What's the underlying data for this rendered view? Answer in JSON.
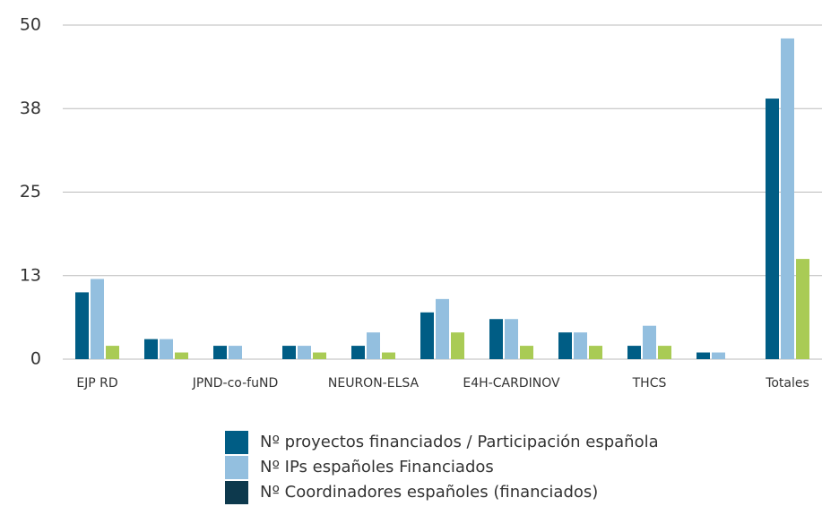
{
  "chart_data": {
    "type": "bar",
    "categories": [
      "EJP RD",
      null,
      "JPND-co-fuND",
      null,
      "NEURON-ELSA",
      null,
      "E4H-CARDINOV",
      null,
      "THCS",
      null,
      "Totales"
    ],
    "series": [
      {
        "name": "Nº proyectos financiados / Participación española",
        "color": "#005d85",
        "legend_color": "#005d85",
        "values": [
          10,
          3,
          2,
          2,
          2,
          7,
          6,
          4,
          2,
          1,
          39
        ]
      },
      {
        "name": "Nº IPs españoles Financiados",
        "color": "#93bfdf",
        "legend_color": "#93bfdf",
        "values": [
          12,
          3,
          2,
          2,
          4,
          9,
          6,
          4,
          5,
          1,
          48
        ]
      },
      {
        "name": "Nº Coordinadores españoles (financiados)",
        "color": "#a9cb55",
        "legend_color": "#0d394d",
        "values": [
          2,
          1,
          0,
          1,
          1,
          4,
          2,
          2,
          2,
          0,
          15
        ]
      }
    ],
    "ylim": [
      0,
      50
    ],
    "yticks": [
      0,
      {
        "value": 12.5,
        "label": "13"
      },
      25,
      {
        "value": 37.5,
        "label": "38"
      },
      50
    ],
    "grid": true
  }
}
